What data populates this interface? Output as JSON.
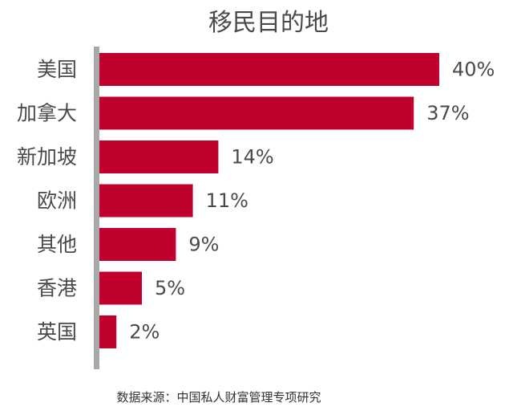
{
  "chart_data": {
    "type": "bar",
    "orientation": "horizontal",
    "title": "移民目的地",
    "categories": [
      "美国",
      "加拿大",
      "新加坡",
      "欧洲",
      "其他",
      "香港",
      "英国"
    ],
    "values": [
      40,
      37,
      14,
      11,
      9,
      5,
      2
    ],
    "value_labels": [
      "40%",
      "37%",
      "14%",
      "11%",
      "9%",
      "5%",
      "2%"
    ],
    "unit": "%",
    "xlim": [
      0,
      40
    ],
    "grid": false,
    "legend": "none",
    "source": "数据来源：中国私人财富管理专项研究"
  },
  "colors": {
    "bar": "#c0002d",
    "axis": "#a8a8a8",
    "text": "#4a4a4a"
  }
}
